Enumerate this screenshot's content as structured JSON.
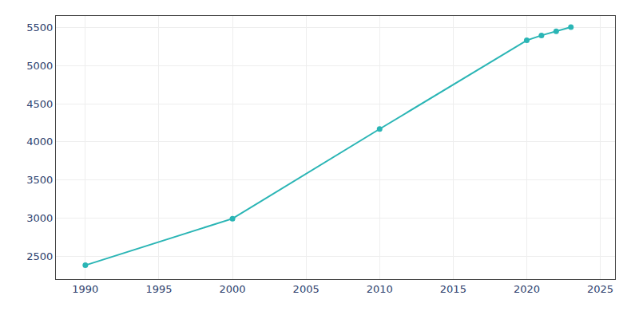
{
  "chart_data": {
    "type": "line",
    "x": [
      1990,
      2000,
      2010,
      2020,
      2021,
      2022,
      2023
    ],
    "values": [
      2382,
      2993,
      4168,
      5330,
      5395,
      5450,
      5503
    ],
    "color": "#2ab5b5",
    "marker": "circle",
    "line_style": "solid",
    "xlim": [
      1988,
      2026
    ],
    "ylim": [
      2200,
      5650
    ],
    "xticks": [
      1990,
      1995,
      2000,
      2005,
      2010,
      2015,
      2020,
      2025
    ],
    "yticks": [
      2500,
      3000,
      3500,
      4000,
      4500,
      5000,
      5500
    ],
    "grid": true
  }
}
